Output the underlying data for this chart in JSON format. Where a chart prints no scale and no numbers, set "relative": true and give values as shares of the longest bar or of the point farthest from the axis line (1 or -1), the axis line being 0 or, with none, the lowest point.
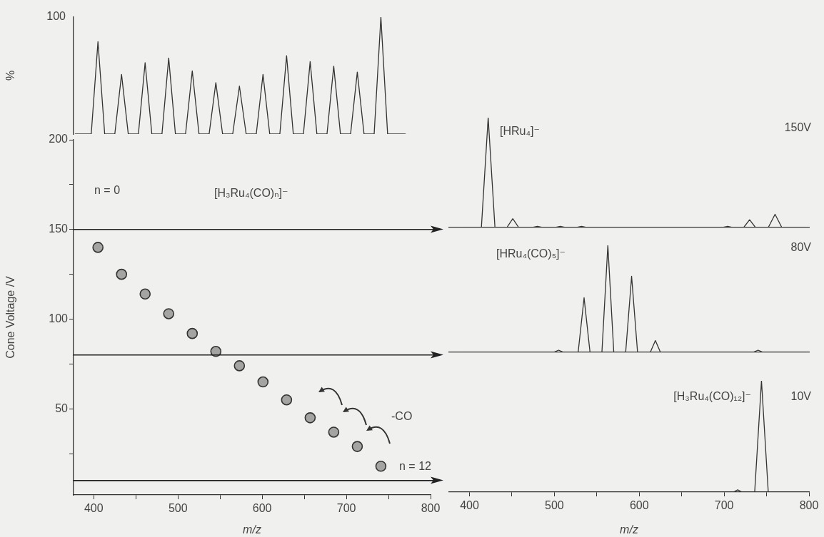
{
  "chart_data": [
    {
      "type": "line",
      "ylabel": "%",
      "relative": true,
      "xlim": [
        376,
        800
      ],
      "tick_labels": false,
      "color": "#333333",
      "annotations": [
        "100"
      ],
      "x": [
        378,
        397,
        405,
        413,
        425,
        433,
        441,
        453,
        461,
        469,
        481,
        489,
        497,
        509,
        517,
        525,
        537,
        545,
        553,
        565,
        573,
        581,
        593,
        601,
        609,
        621,
        629,
        637,
        649,
        657,
        665,
        677,
        685,
        693,
        705,
        713,
        721,
        733,
        741,
        749,
        770
      ],
      "values": [
        0,
        0,
        0.79,
        0,
        0,
        0.51,
        0,
        0,
        0.61,
        0,
        0,
        0.65,
        0,
        0,
        0.54,
        0,
        0,
        0.44,
        0,
        0,
        0.41,
        0,
        0,
        0.51,
        0,
        0,
        0.67,
        0,
        0,
        0.62,
        0,
        0,
        0.58,
        0,
        0,
        0.53,
        0,
        0,
        1,
        0,
        0
      ]
    },
    {
      "type": "scatter",
      "xlabel": "m/z",
      "ylabel": "Cone Voltage /V",
      "marker": "circle",
      "color": "#333333",
      "xlim": [
        376,
        800
      ],
      "ylim": [
        2,
        200
      ],
      "xticks": [
        400,
        {
          "value": 450,
          "label": null
        },
        500,
        {
          "value": 550,
          "label": null
        },
        600,
        {
          "value": 650,
          "label": null
        },
        700,
        {
          "value": 750,
          "label": null
        },
        800
      ],
      "yticks": [
        {
          "value": 25,
          "label": null
        },
        50,
        {
          "value": 75,
          "label": null
        },
        100,
        {
          "value": 125,
          "label": null
        },
        150,
        {
          "value": 175,
          "label": null
        },
        200
      ],
      "x": [
        405,
        433,
        461,
        489,
        517,
        545,
        573,
        601,
        629,
        657,
        685,
        713,
        741
      ],
      "values": [
        140,
        125,
        114,
        103,
        92,
        82,
        74,
        65,
        55,
        45,
        37,
        29,
        18
      ],
      "ref_lines": [
        {
          "axis": "y",
          "value": 150
        },
        {
          "axis": "y",
          "value": 80
        },
        {
          "axis": "y",
          "value": 10
        }
      ],
      "annotations": [
        "n = 0",
        "[H₃Ru₄(CO)ₙ]⁻",
        "-CO",
        "n = 12"
      ]
    },
    {
      "type": "line",
      "relative": true,
      "xlim": [
        376,
        800
      ],
      "tick_labels": false,
      "color": "#333333",
      "annotations": [
        "[HRu₄]⁻",
        "150V"
      ],
      "x": [
        393,
        414,
        422,
        430,
        444,
        451,
        458,
        474,
        480,
        486,
        501,
        507,
        513,
        526,
        532,
        538,
        698,
        704,
        710,
        723,
        730,
        737,
        752,
        760,
        768,
        800
      ],
      "values": [
        0,
        0,
        1,
        0,
        0,
        0.08,
        0,
        0,
        0.01,
        0,
        0,
        0.01,
        0,
        0,
        0.01,
        0,
        0,
        0.01,
        0,
        0,
        0.07,
        0,
        0,
        0.12,
        0,
        0
      ]
    },
    {
      "type": "line",
      "relative": true,
      "xlim": [
        376,
        800
      ],
      "tick_labels": false,
      "color": "#333333",
      "annotations": [
        "[HRu₄(CO)₅]⁻",
        "80V"
      ],
      "x": [
        393,
        499,
        505,
        511,
        528,
        535,
        542,
        556,
        563,
        570,
        584,
        591,
        598,
        613,
        619,
        625,
        734,
        740,
        746,
        800
      ],
      "values": [
        0,
        0,
        0.02,
        0,
        0,
        0.51,
        0,
        0,
        1,
        0,
        0,
        0.71,
        0,
        0,
        0.11,
        0,
        0,
        0.02,
        0,
        0
      ]
    },
    {
      "type": "line",
      "relative": true,
      "xlabel": "m/z",
      "xlim": [
        376,
        800
      ],
      "tick_labels": "x",
      "color": "#333333",
      "annotations": [
        "[H₃Ru₄(CO)₁₂]⁻",
        "10V"
      ],
      "xticks": [
        400,
        {
          "value": 450,
          "label": null
        },
        500,
        {
          "value": 550,
          "label": null
        },
        600,
        {
          "value": 650,
          "label": null
        },
        700,
        {
          "value": 750,
          "label": null
        },
        800
      ],
      "x": [
        377,
        711,
        716,
        721,
        736,
        744,
        752,
        800
      ],
      "values": [
        0,
        0,
        0.02,
        0,
        0,
        1,
        0,
        0
      ]
    }
  ]
}
